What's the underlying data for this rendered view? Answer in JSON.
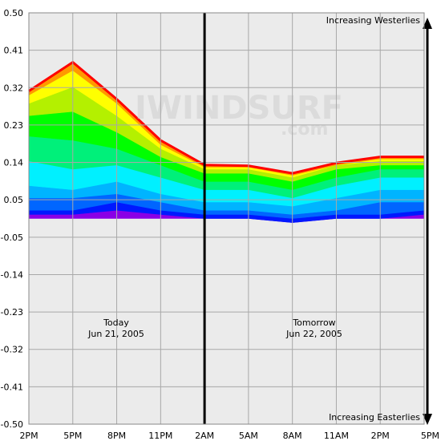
{
  "chart_data": {
    "type": "area",
    "x": [
      "2PM",
      "5PM",
      "8PM",
      "11PM",
      "2AM",
      "5AM",
      "8AM",
      "11AM",
      "2PM",
      "5PM"
    ],
    "series": [
      {
        "values": [
          0.01,
          0.01,
          0.02,
          0.01,
          0.0,
          0.0,
          -0.01,
          0.0,
          0.0,
          0.01
        ]
      },
      {
        "values": [
          0.02,
          0.02,
          0.04,
          0.02,
          0.01,
          0.01,
          0.0,
          0.01,
          0.01,
          0.02
        ]
      },
      {
        "values": [
          0.05,
          0.05,
          0.06,
          0.04,
          0.02,
          0.02,
          0.01,
          0.02,
          0.04,
          0.04
        ]
      },
      {
        "values": [
          0.08,
          0.07,
          0.09,
          0.06,
          0.04,
          0.04,
          0.03,
          0.05,
          0.07,
          0.07
        ]
      },
      {
        "values": [
          0.14,
          0.12,
          0.13,
          0.1,
          0.07,
          0.07,
          0.05,
          0.08,
          0.1,
          0.1
        ]
      },
      {
        "values": [
          0.2,
          0.19,
          0.17,
          0.13,
          0.09,
          0.09,
          0.07,
          0.1,
          0.12,
          0.12
        ]
      },
      {
        "values": [
          0.25,
          0.26,
          0.21,
          0.15,
          0.11,
          0.11,
          0.09,
          0.12,
          0.13,
          0.13
        ]
      },
      {
        "values": [
          0.28,
          0.32,
          0.25,
          0.17,
          0.12,
          0.12,
          0.1,
          0.13,
          0.14,
          0.14
        ]
      },
      {
        "values": [
          0.3,
          0.36,
          0.28,
          0.18,
          0.125,
          0.125,
          0.105,
          0.13,
          0.145,
          0.145
        ]
      },
      {
        "values": [
          0.31,
          0.38,
          0.29,
          0.19,
          0.13,
          0.128,
          0.11,
          0.135,
          0.15,
          0.15
        ]
      }
    ],
    "yticks": [
      "0.50",
      "0.41",
      "0.32",
      "0.23",
      "0.14",
      "0.05",
      "-0.05",
      "-0.14",
      "-0.23",
      "-0.32",
      "-0.41",
      "-0.50"
    ],
    "ylim": [
      -0.5,
      0.5
    ],
    "grid": true,
    "divider_at": "2AM",
    "annotations": {
      "top_right": "Increasing Westerlies",
      "bottom_right": "Increasing Easterlies",
      "today_label": "Today",
      "today_date": "Jun 21, 2005",
      "tomorrow_label": "Tomorrow",
      "tomorrow_date": "Jun 22, 2005"
    },
    "watermark": {
      "line1": "IWINDSURF",
      "line2": ".com"
    },
    "colors": {
      "plot_bg": "#ebebeb",
      "grid": "#a8a8a8",
      "bands": [
        "#8a00e6",
        "#0018ff",
        "#0066ff",
        "#00b4ff",
        "#00f0ff",
        "#00f07a",
        "#00ff00",
        "#b4f000",
        "#ffff00",
        "#ff9900",
        "#ff0000"
      ]
    }
  }
}
